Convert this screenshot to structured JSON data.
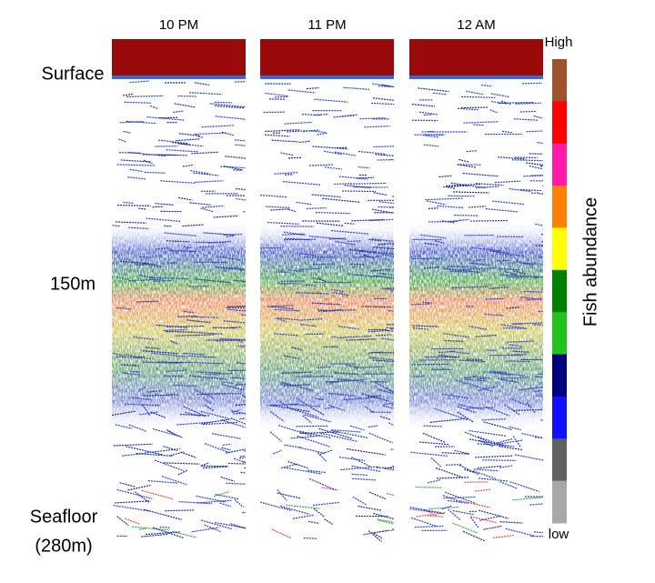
{
  "panels": [
    {
      "label": "10 PM"
    },
    {
      "label": "11 PM"
    },
    {
      "label": "12 AM"
    }
  ],
  "depth_labels": {
    "surface": "Surface",
    "mid": "150m",
    "seafloor": "Seafloor",
    "seafloor_depth": "(280m)"
  },
  "colorbar": {
    "title": "Fish abundance",
    "high": "High",
    "low": "low",
    "colors": [
      "#a0522d",
      "#ff0000",
      "#ff1aa8",
      "#ff8000",
      "#ffff00",
      "#008000",
      "#22c41c",
      "#000080",
      "#1010ff",
      "#606060",
      "#a8a8a8"
    ]
  }
}
